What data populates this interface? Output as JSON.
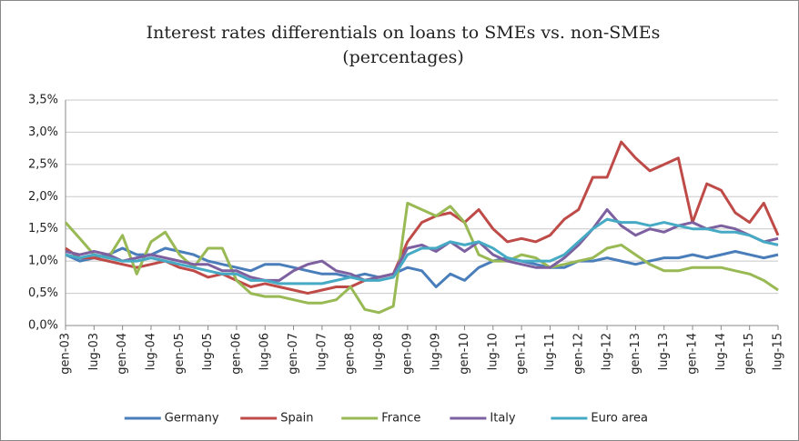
{
  "chart_data": {
    "type": "line",
    "title": "Interest rates differentials on loans to SMEs vs. non-SMEs",
    "subtitle": "(percentages)",
    "categories": [
      "gen-03",
      null,
      "lug-03",
      null,
      "gen-04",
      null,
      "lug-04",
      null,
      "gen-05",
      null,
      "lug-05",
      null,
      "gen-06",
      null,
      "lug-06",
      null,
      "gen-07",
      null,
      "lug-07",
      null,
      "gen-08",
      null,
      "lug-08",
      null,
      "gen-09",
      null,
      "lug-09",
      null,
      "gen-10",
      null,
      "lug-10",
      null,
      "gen-11",
      null,
      "lug-11",
      null,
      "gen-12",
      null,
      "lug-12",
      null,
      "gen-13",
      null,
      "lug-13",
      null,
      "gen-14",
      null,
      "lug-14",
      null,
      "gen-15",
      null,
      "lug-15"
    ],
    "series": [
      {
        "name": "Germany",
        "color": "#4a7ebb",
        "values": [
          1.1,
          1.0,
          1.05,
          1.1,
          1.2,
          1.1,
          1.1,
          1.2,
          1.15,
          1.1,
          1.0,
          0.95,
          0.9,
          0.85,
          0.95,
          0.95,
          0.9,
          0.85,
          0.8,
          0.8,
          0.75,
          0.8,
          0.75,
          0.8,
          0.9,
          0.85,
          0.6,
          0.8,
          0.7,
          0.9,
          1.0,
          1.05,
          1.0,
          0.95,
          0.9,
          0.9,
          1.0,
          1.0,
          1.05,
          1.0,
          0.95,
          1.0,
          1.05,
          1.05,
          1.1,
          1.05,
          1.1,
          1.15,
          1.1,
          1.05,
          1.1
        ]
      },
      {
        "name": "Spain",
        "color": "#be4b48",
        "values": [
          1.2,
          1.05,
          1.05,
          1.0,
          0.95,
          0.9,
          0.95,
          1.0,
          0.9,
          0.85,
          0.75,
          0.8,
          0.7,
          0.6,
          0.65,
          0.6,
          0.55,
          0.5,
          0.55,
          0.6,
          0.6,
          0.7,
          0.75,
          0.8,
          1.3,
          1.6,
          1.7,
          1.75,
          1.6,
          1.8,
          1.5,
          1.3,
          1.35,
          1.3,
          1.4,
          1.65,
          1.8,
          2.3,
          2.3,
          2.85,
          2.6,
          2.4,
          2.5,
          2.6,
          1.6,
          2.2,
          2.1,
          1.75,
          1.6,
          1.9,
          1.4
        ]
      },
      {
        "name": "France",
        "color": "#98b954",
        "values": [
          1.6,
          1.35,
          1.1,
          1.05,
          1.4,
          0.8,
          1.3,
          1.45,
          1.1,
          0.9,
          1.2,
          1.2,
          0.7,
          0.5,
          0.45,
          0.45,
          0.4,
          0.35,
          0.35,
          0.4,
          0.6,
          0.25,
          0.2,
          0.3,
          1.9,
          1.8,
          1.7,
          1.85,
          1.6,
          1.1,
          1.0,
          1.0,
          1.1,
          1.05,
          0.9,
          0.95,
          1.0,
          1.05,
          1.2,
          1.25,
          1.1,
          0.95,
          0.85,
          0.85,
          0.9,
          0.9,
          0.9,
          0.85,
          0.8,
          0.7,
          0.55
        ]
      },
      {
        "name": "Italy",
        "color": "#7d60a0",
        "values": [
          1.15,
          1.1,
          1.15,
          1.1,
          1.0,
          1.05,
          1.1,
          1.05,
          1.0,
          0.95,
          0.95,
          0.85,
          0.85,
          0.75,
          0.7,
          0.7,
          0.85,
          0.95,
          1.0,
          0.85,
          0.8,
          0.7,
          0.75,
          0.8,
          1.2,
          1.25,
          1.15,
          1.3,
          1.15,
          1.3,
          1.1,
          1.0,
          0.95,
          0.9,
          0.9,
          1.05,
          1.25,
          1.5,
          1.8,
          1.55,
          1.4,
          1.5,
          1.45,
          1.55,
          1.6,
          1.5,
          1.55,
          1.5,
          1.4,
          1.3,
          1.35
        ]
      },
      {
        "name": "Euro area",
        "color": "#46aac5",
        "values": [
          1.1,
          1.05,
          1.1,
          1.05,
          1.0,
          1.0,
          1.05,
          1.0,
          0.95,
          0.9,
          0.85,
          0.8,
          0.8,
          0.7,
          0.7,
          0.65,
          0.65,
          0.65,
          0.65,
          0.7,
          0.75,
          0.7,
          0.7,
          0.75,
          1.1,
          1.2,
          1.2,
          1.3,
          1.25,
          1.3,
          1.2,
          1.05,
          1.0,
          1.0,
          1.0,
          1.1,
          1.3,
          1.5,
          1.65,
          1.6,
          1.6,
          1.55,
          1.6,
          1.55,
          1.5,
          1.5,
          1.45,
          1.45,
          1.4,
          1.3,
          1.25
        ]
      }
    ],
    "ylim": [
      0,
      3.5
    ],
    "yticks": [
      {
        "value": 0,
        "label": "0,0%"
      },
      {
        "value": 0.5,
        "label": "0,5%"
      },
      {
        "value": 1,
        "label": "1,0%"
      },
      {
        "value": 1.5,
        "label": "1,5%"
      },
      {
        "value": 2,
        "label": "2,0%"
      },
      {
        "value": 2.5,
        "label": "2,5%"
      },
      {
        "value": 3,
        "label": "3,0%"
      },
      {
        "value": 3.5,
        "label": "3,5%"
      }
    ],
    "grid": true,
    "legend": "bottom"
  }
}
